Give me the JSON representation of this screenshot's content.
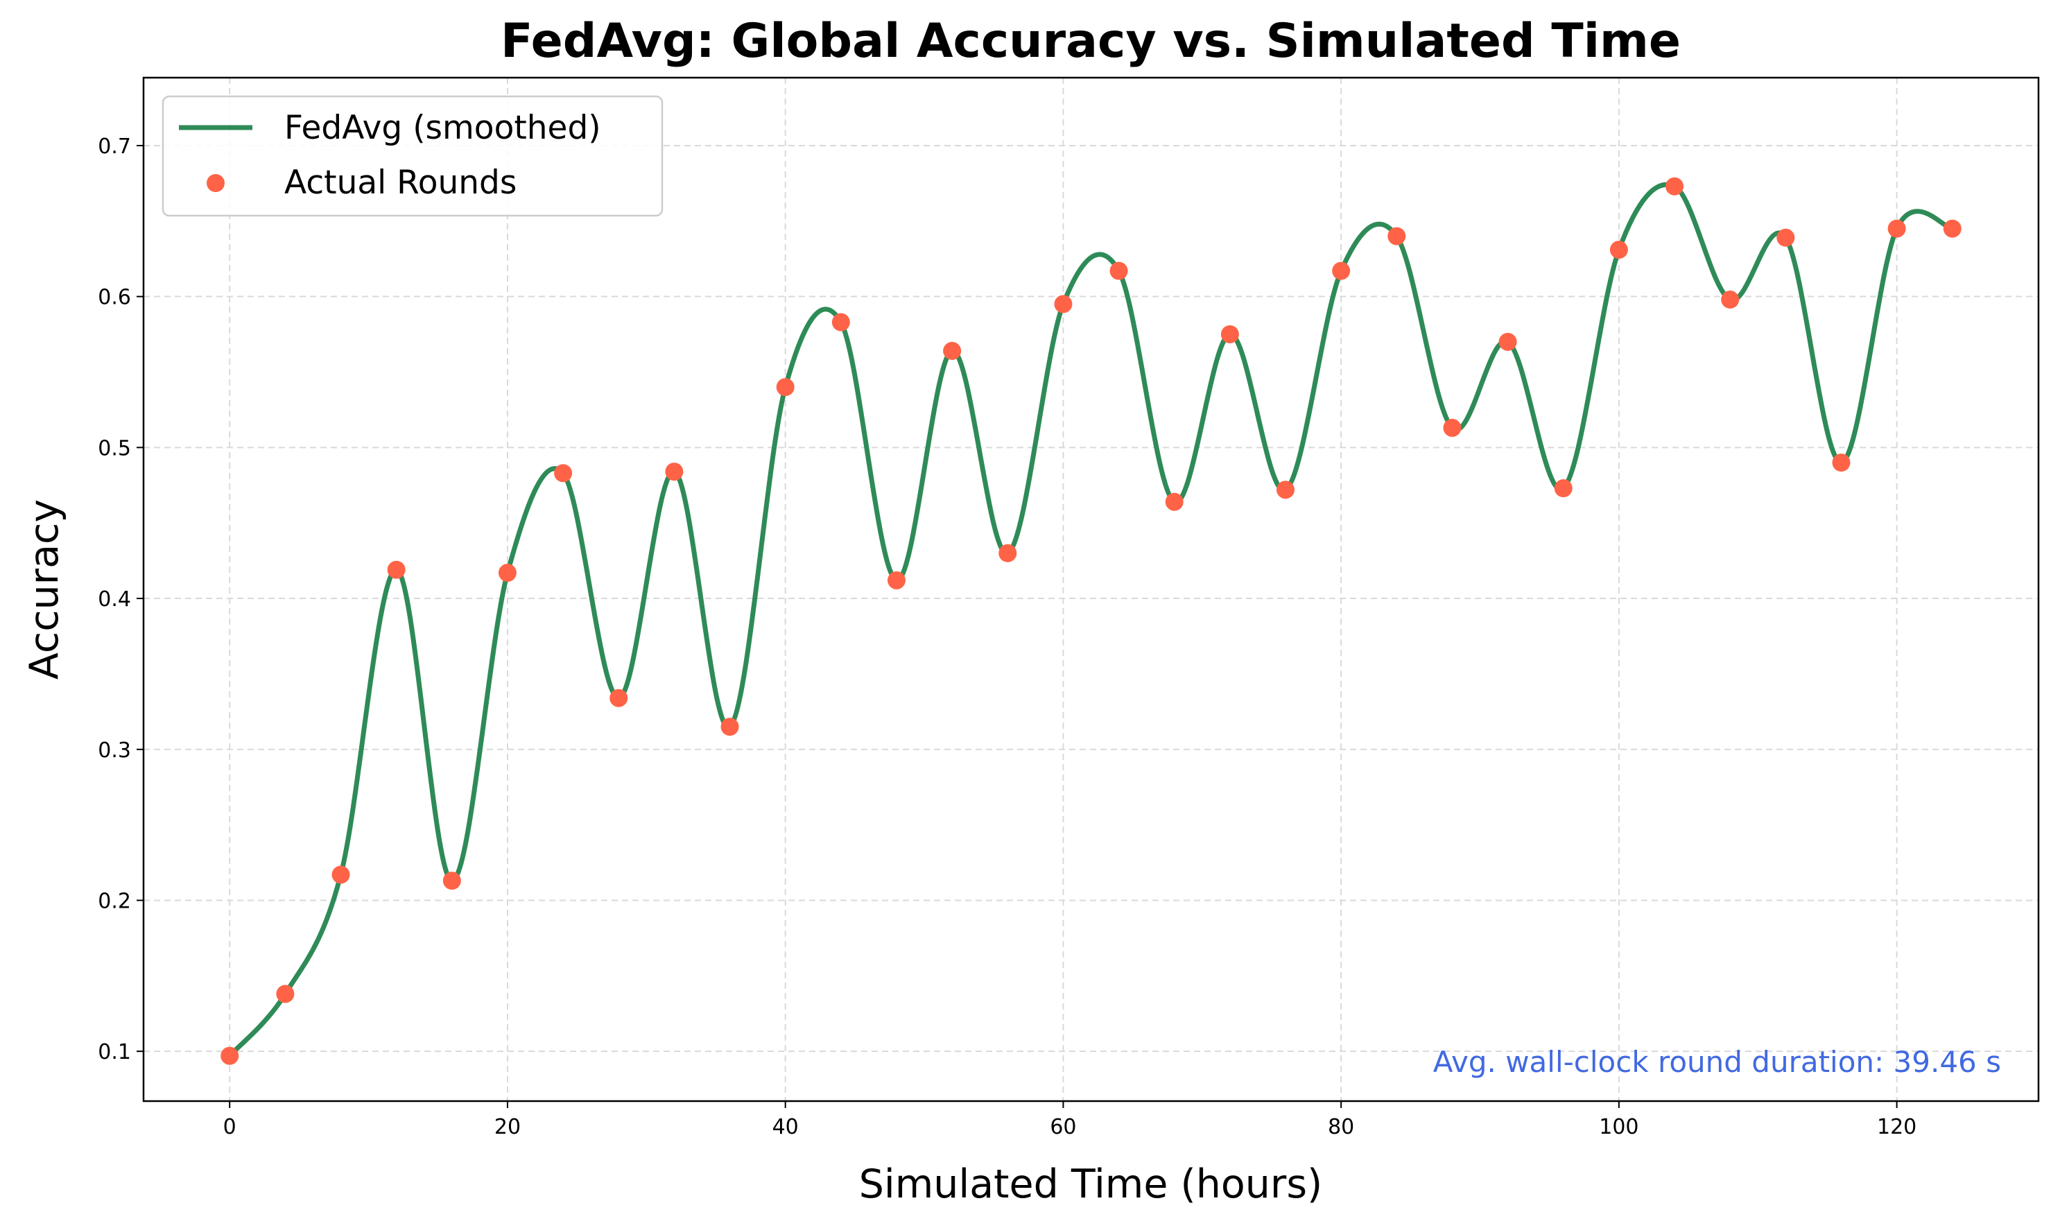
{
  "chart_data": {
    "type": "line",
    "title": "FedAvg: Global Accuracy vs. Simulated Time",
    "xlabel": "Simulated Time (hours)",
    "ylabel": "Accuracy",
    "xlim": [
      -6.2,
      130.2
    ],
    "ylim": [
      0.067,
      0.745
    ],
    "xticks": [
      0,
      20,
      40,
      60,
      80,
      100,
      120
    ],
    "yticks": [
      0.1,
      0.2,
      0.3,
      0.4,
      0.5,
      0.6,
      0.7
    ],
    "xtick_labels": [
      "0",
      "20",
      "40",
      "60",
      "80",
      "100",
      "120"
    ],
    "ytick_labels": [
      "0.1",
      "0.2",
      "0.3",
      "0.4",
      "0.5",
      "0.6",
      "0.7"
    ],
    "grid": true,
    "legend_position": "top-left",
    "series": [
      {
        "name": "FedAvg (smoothed)",
        "style": "line",
        "color": "#2e8b57",
        "x": [
          0,
          4,
          8,
          12,
          16,
          20,
          24,
          28,
          32,
          36,
          40,
          44,
          48,
          52,
          56,
          60,
          64,
          68,
          72,
          76,
          80,
          84,
          88,
          92,
          96,
          100,
          104,
          108,
          112,
          116,
          120,
          124
        ],
        "y": [
          0.097,
          0.138,
          0.217,
          0.419,
          0.213,
          0.417,
          0.483,
          0.334,
          0.484,
          0.315,
          0.54,
          0.583,
          0.412,
          0.564,
          0.43,
          0.595,
          0.617,
          0.464,
          0.575,
          0.472,
          0.617,
          0.64,
          0.513,
          0.57,
          0.473,
          0.631,
          0.673,
          0.598,
          0.639,
          0.49,
          0.645,
          0.645
        ]
      },
      {
        "name": "Actual Rounds",
        "style": "scatter",
        "color": "#ff6347",
        "x": [
          0,
          4,
          8,
          12,
          16,
          20,
          24,
          28,
          32,
          36,
          40,
          44,
          48,
          52,
          56,
          60,
          64,
          68,
          72,
          76,
          80,
          84,
          88,
          92,
          96,
          100,
          104,
          108,
          112,
          116,
          120,
          124
        ],
        "y": [
          0.097,
          0.138,
          0.217,
          0.419,
          0.213,
          0.417,
          0.483,
          0.334,
          0.484,
          0.315,
          0.54,
          0.583,
          0.412,
          0.564,
          0.43,
          0.595,
          0.617,
          0.464,
          0.575,
          0.472,
          0.617,
          0.64,
          0.513,
          0.57,
          0.473,
          0.631,
          0.673,
          0.598,
          0.639,
          0.49,
          0.645,
          0.645
        ]
      }
    ],
    "annotation": {
      "text": "Avg. wall-clock round duration: 39.46 s",
      "color": "#4169e1",
      "position": "bottom-right"
    }
  }
}
